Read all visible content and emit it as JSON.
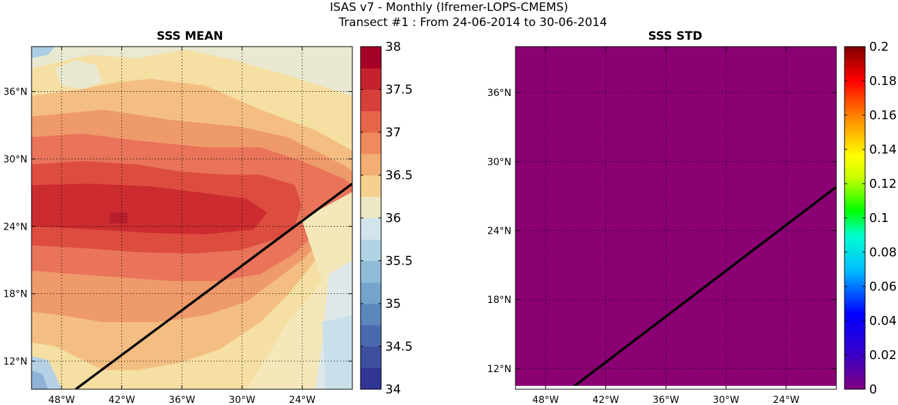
{
  "figure": {
    "title_line1": "ISAS v7 - Monthly (Ifremer-LOPS-CMEMS)",
    "title_line2": "Transect #1 : From 24-06-2014 to 30-06-2014"
  },
  "chart_data": [
    {
      "type": "heatmap",
      "title": "SSS MEAN",
      "x": {
        "range": [
          -51,
          -19
        ],
        "ticks": [
          -48,
          -42,
          -36,
          -30,
          -24
        ],
        "tick_labels": [
          "48°W",
          "42°W",
          "36°W",
          "30°W",
          "24°W"
        ]
      },
      "y": {
        "range": [
          9.5,
          40
        ],
        "ticks": [
          12,
          18,
          24,
          30,
          36
        ],
        "tick_labels": [
          "12°N",
          "18°N",
          "24°N",
          "30°N",
          "36°N"
        ]
      },
      "grid": true,
      "colorbar": {
        "min": 34,
        "max": 38,
        "ticks": [
          34,
          34.5,
          35,
          35.5,
          36,
          36.5,
          37,
          37.5,
          38
        ],
        "tick_labels": [
          "34",
          "34.5",
          "35",
          "35.5",
          "36",
          "36.5",
          "37",
          "37.5",
          "38"
        ],
        "levels": 16,
        "colormap": "RdYlBu_r"
      },
      "field_description": "salinity maximum ~37.6 near 25°N 36°W, decreasing to ~36.2 north and south",
      "transect": {
        "color": "#000000",
        "start": [
          -46.6,
          9.5
        ],
        "end": [
          -19,
          27.8
        ]
      }
    },
    {
      "type": "heatmap",
      "title": "SSS STD",
      "x": {
        "range": [
          -51,
          -19
        ],
        "ticks": [
          -48,
          -42,
          -36,
          -30,
          -24
        ],
        "tick_labels": [
          "48°W",
          "42°W",
          "36°W",
          "30°W",
          "24°W"
        ]
      },
      "y": {
        "range": [
          10.5,
          40
        ],
        "ticks": [
          12,
          18,
          24,
          30,
          36
        ],
        "tick_labels": [
          "12°N",
          "18°N",
          "24°N",
          "30°N",
          "36°N"
        ]
      },
      "grid": true,
      "colorbar": {
        "min": 0,
        "max": 0.2,
        "ticks": [
          0,
          0.02,
          0.04,
          0.06,
          0.08,
          0.1,
          0.12,
          0.14,
          0.16,
          0.18,
          0.2
        ],
        "tick_labels": [
          "0",
          "0.02",
          "0.04",
          "0.06",
          "0.08",
          "0.1",
          "0.12",
          "0.14",
          "0.16",
          "0.18",
          "0.2"
        ],
        "colormap": "jet"
      },
      "field_color": "#8b0073",
      "transect": {
        "color": "#000000",
        "start": [
          -46.6,
          9.5
        ],
        "end": [
          -19,
          27.8
        ]
      }
    }
  ]
}
